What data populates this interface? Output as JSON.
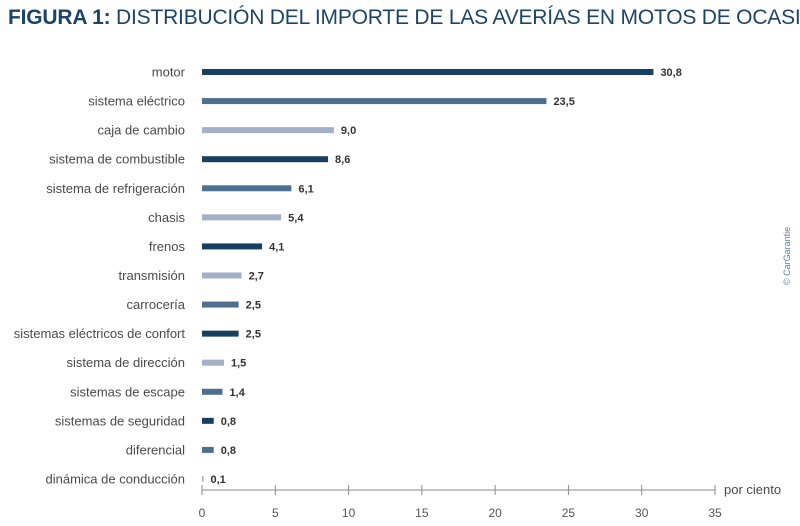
{
  "title": {
    "bold": "FIGURA 1:",
    "rest": " DISTRIBUCIÓN DEL IMPORTE DE LAS AVERÍAS EN MOTOS DE OCASIÓN"
  },
  "credit": "© CarGarantie",
  "chart_data": {
    "type": "bar",
    "orientation": "horizontal",
    "categories": [
      "motor",
      "sistema eléctrico",
      "caja de cambio",
      "sistema de combustible",
      "sistema de refrigeración",
      "chasis",
      "frenos",
      "transmisión",
      "carrocería",
      "sistemas eléctricos de confort",
      "sistema de dirección",
      "sistemas de escape",
      "sistemas de seguridad",
      "diferencial",
      "dinámica de conducción"
    ],
    "values": [
      30.8,
      23.5,
      9.0,
      8.6,
      6.1,
      5.4,
      4.1,
      2.7,
      2.5,
      2.5,
      1.5,
      1.4,
      0.8,
      0.8,
      0.1
    ],
    "value_labels": [
      "30,8",
      "23,5",
      "9,0",
      "8,6",
      "6,1",
      "5,4",
      "4,1",
      "2,7",
      "2,5",
      "2,5",
      "1,5",
      "1,4",
      "0,8",
      "0,8",
      "0,1"
    ],
    "bar_colors": [
      "#173f5f",
      "#4f6f91",
      "#a3b0c8",
      "#173f5f",
      "#4f6f91",
      "#a3b0c8",
      "#173f5f",
      "#a3b0c8",
      "#4f6f91",
      "#173f5f",
      "#a3b0c8",
      "#4f6f91",
      "#173f5f",
      "#4f6f91",
      "#a3b0c8"
    ],
    "xlabel": "por ciento",
    "xlim": [
      0,
      35
    ],
    "xticks": [
      0,
      5,
      10,
      15,
      20,
      25,
      30,
      35
    ],
    "grid": false
  }
}
